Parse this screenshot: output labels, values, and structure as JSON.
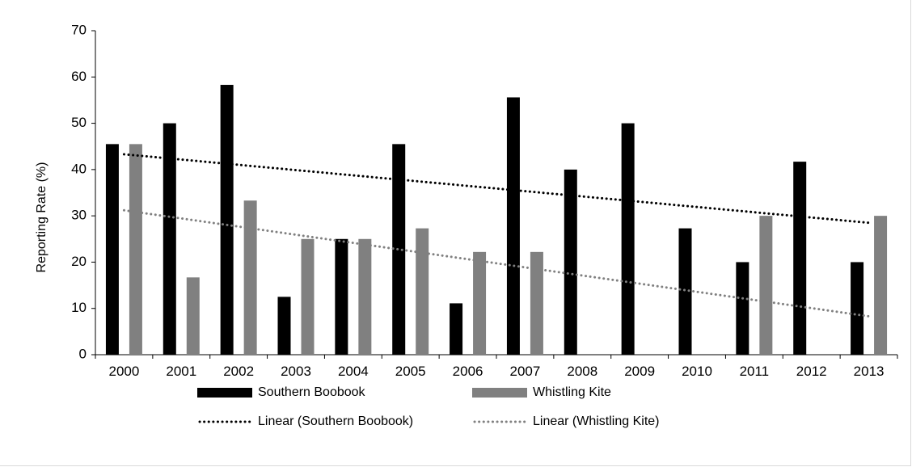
{
  "chart_data": {
    "type": "bar",
    "categories": [
      "2000",
      "2001",
      "2002",
      "2003",
      "2004",
      "2005",
      "2006",
      "2007",
      "2008",
      "2009",
      "2010",
      "2011",
      "2012",
      "2013"
    ],
    "series": [
      {
        "name": "Southern Boobook",
        "color": "#000000",
        "values": [
          45.5,
          50,
          58.3,
          12.5,
          25,
          45.5,
          11.1,
          55.6,
          40,
          50,
          27.3,
          20,
          41.7,
          20
        ]
      },
      {
        "name": "Whistling Kite",
        "color": "#808080",
        "values": [
          45.5,
          16.7,
          33.3,
          25,
          25,
          27.3,
          22.2,
          22.2,
          0,
          0,
          0,
          30,
          0,
          30
        ]
      }
    ],
    "trendlines": [
      {
        "name": "Linear (Southern Boobook)",
        "color": "#000000",
        "start": 43.3,
        "end": 28.5
      },
      {
        "name": "Linear (Whistling Kite)",
        "color": "#808080",
        "start": 31.2,
        "end": 8.3
      }
    ],
    "ylabel": "Reporting Rate (%)",
    "xlabel": "",
    "ylim": [
      0,
      70
    ],
    "yticks": [
      0,
      10,
      20,
      30,
      40,
      50,
      60,
      70
    ],
    "grid": false,
    "legend_position": "bottom"
  }
}
